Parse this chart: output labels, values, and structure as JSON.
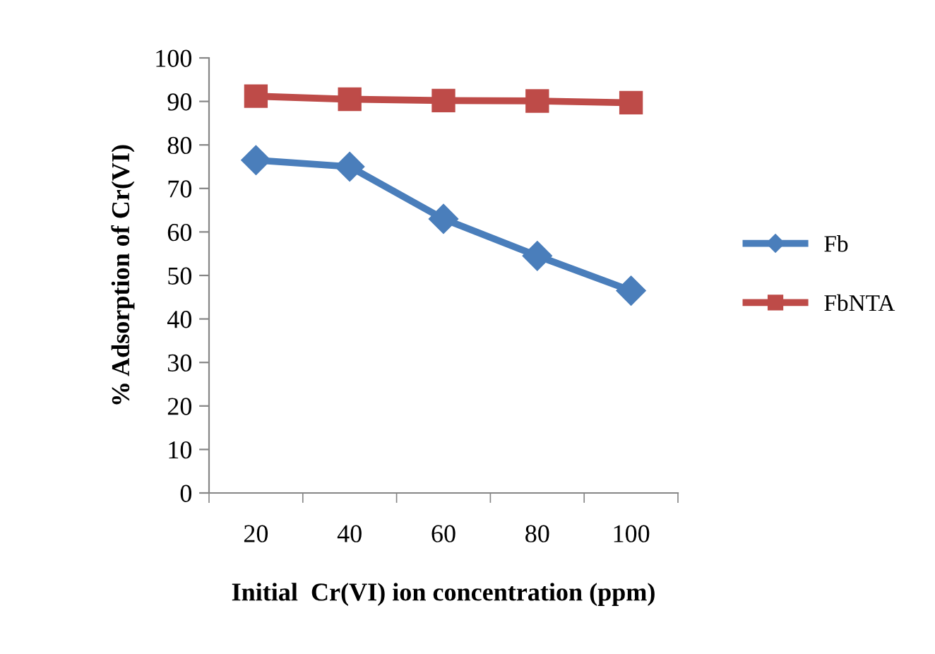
{
  "chart_data": {
    "type": "line",
    "xlabel": "Initial  Cr(VI) ion concentration (ppm)",
    "ylabel": "% Adsorption of Cr(VI)",
    "categories": [
      "20",
      "40",
      "60",
      "80",
      "100"
    ],
    "series": [
      {
        "name": "Fb",
        "color": "#4a7ebb",
        "marker": "diamond",
        "values": [
          76.5,
          75,
          63,
          54.5,
          46.5
        ]
      },
      {
        "name": "FbNTA",
        "color": "#be4b48",
        "marker": "square",
        "values": [
          91.2,
          90.5,
          90.2,
          90.1,
          89.7
        ]
      }
    ],
    "ylim": [
      0,
      100
    ],
    "yticks": [
      0,
      10,
      20,
      30,
      40,
      50,
      60,
      70,
      80,
      90,
      100
    ],
    "grid": false,
    "legend": "right",
    "line_style": "solid"
  }
}
